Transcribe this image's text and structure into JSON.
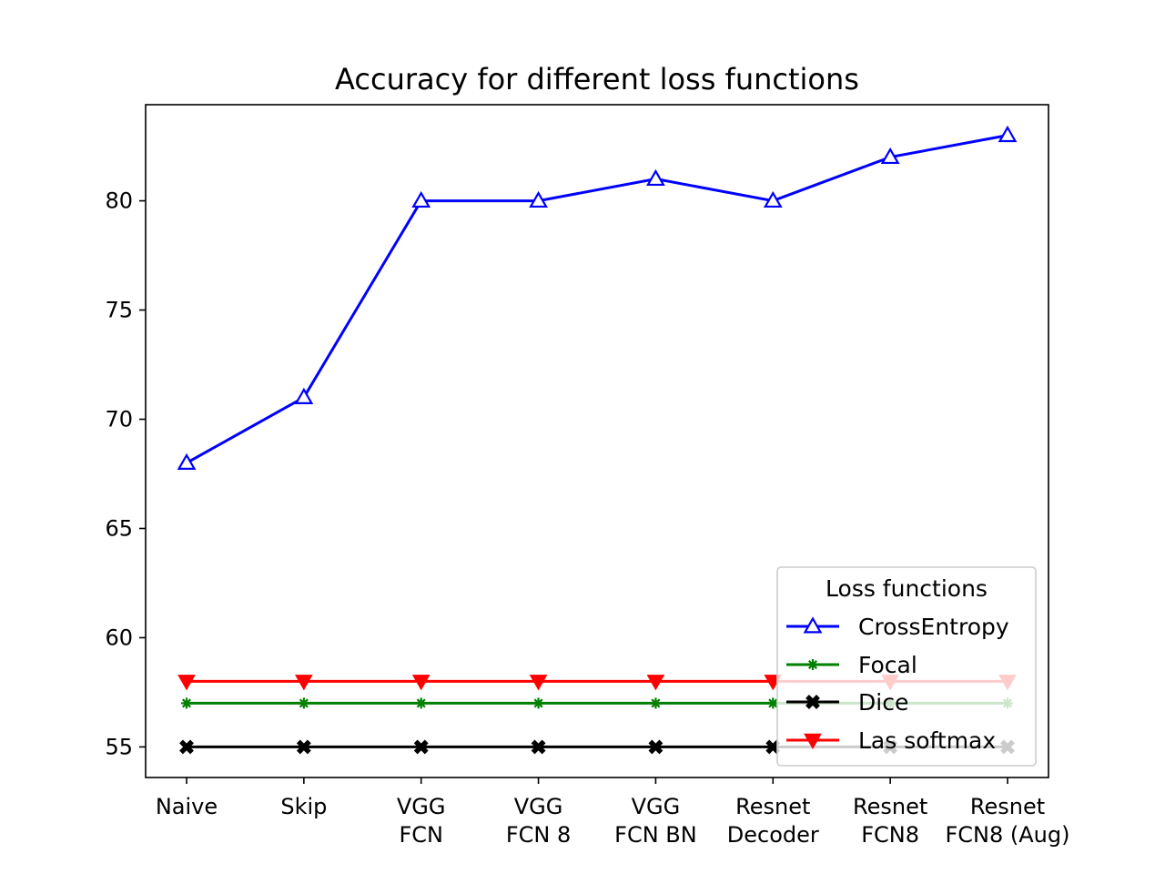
{
  "chart_data": {
    "type": "line",
    "title": "Accuracy for different loss functions",
    "xlabel": "",
    "ylabel": "",
    "categories": [
      [
        "Naive"
      ],
      [
        "Skip"
      ],
      [
        "VGG",
        "FCN"
      ],
      [
        "VGG",
        "FCN 8"
      ],
      [
        "VGG",
        "FCN BN"
      ],
      [
        "Resnet",
        "Decoder"
      ],
      [
        "Resnet",
        "FCN8"
      ],
      [
        "Resnet",
        "FCN8 (Aug)"
      ]
    ],
    "ylim": [
      53.6,
      84.4
    ],
    "yticks": [
      55,
      60,
      65,
      70,
      75,
      80
    ],
    "grid": false,
    "legend": {
      "title": "Loss functions",
      "placement": "lower-right"
    },
    "series": [
      {
        "name": "CrossEntropy",
        "color": "#0000ff",
        "marker": "triangle-up-open",
        "values": [
          68,
          71,
          80,
          80,
          81,
          80,
          82,
          83
        ]
      },
      {
        "name": "Focal",
        "color": "#008000",
        "marker": "star",
        "values": [
          57,
          57,
          57,
          57,
          57,
          57,
          57,
          57
        ]
      },
      {
        "name": "Dice",
        "color": "#000000",
        "marker": "x-filled",
        "values": [
          55,
          55,
          55,
          55,
          55,
          55,
          55,
          55
        ]
      },
      {
        "name": "Las softmax",
        "color": "#ff0000",
        "marker": "triangle-down",
        "values": [
          58,
          58,
          58,
          58,
          58,
          58,
          58,
          58
        ]
      }
    ]
  }
}
